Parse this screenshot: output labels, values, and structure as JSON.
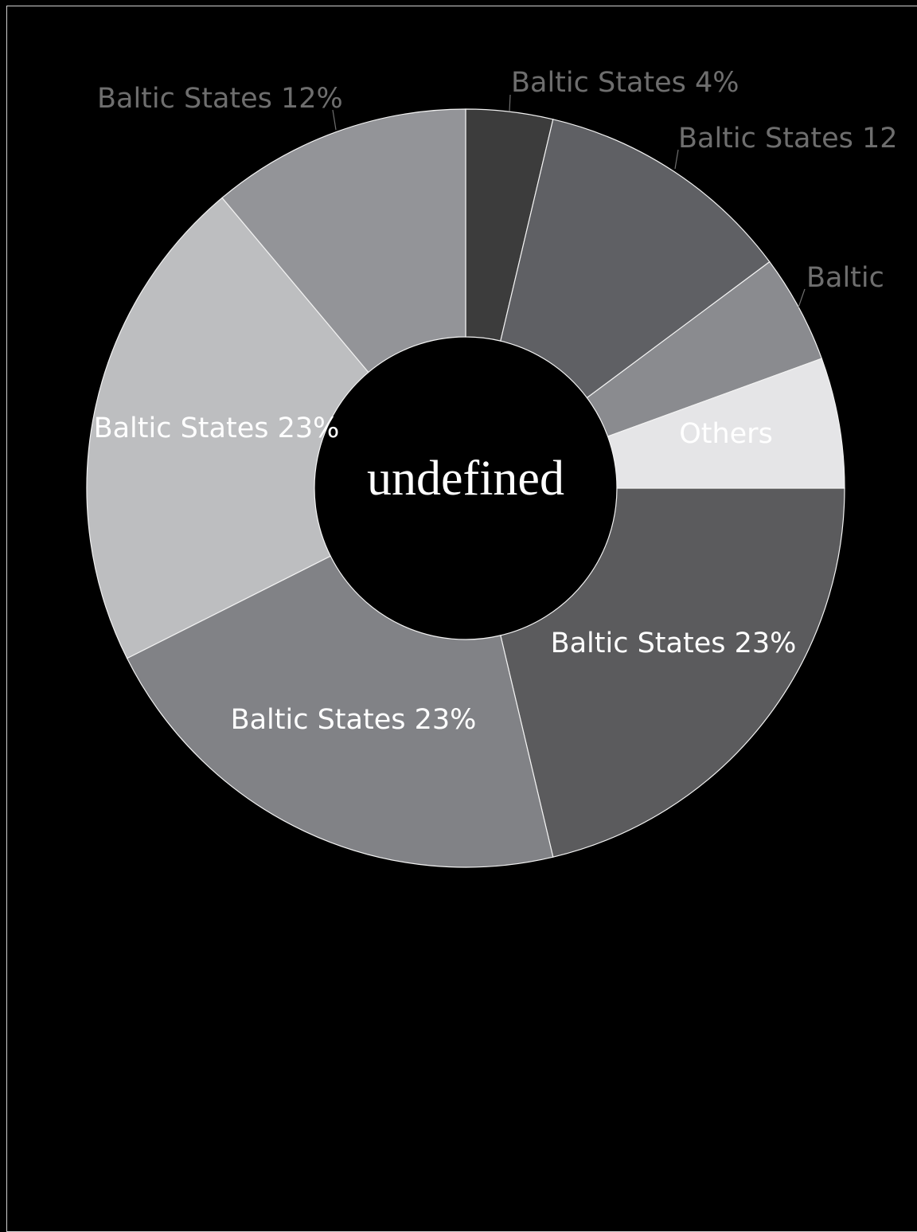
{
  "chart_data": {
    "type": "pie",
    "donut": true,
    "center_label": "undefined",
    "legend": false,
    "slices": [
      {
        "label": "Baltic States 4%",
        "value": 4,
        "color": "#3c3c3c",
        "label_position": "outside"
      },
      {
        "label": "Baltic States 12",
        "value": 12,
        "color": "#5f6064",
        "label_position": "outside"
      },
      {
        "label": "Baltic",
        "value": 5,
        "color": "#8a8b8f",
        "label_position": "outside"
      },
      {
        "label": "Others",
        "value": 6,
        "color": "#e5e5e7",
        "label_position": "inside"
      },
      {
        "label": "Baltic States 23%",
        "value": 23,
        "color": "#5b5b5d",
        "label_position": "inside"
      },
      {
        "label": "Baltic States 23%",
        "value": 23,
        "color": "#818286",
        "label_position": "inside"
      },
      {
        "label": "Baltic States 23%",
        "value": 23,
        "color": "#bdbec0",
        "label_position": "inside"
      },
      {
        "label": "Baltic States 12%",
        "value": 12,
        "color": "#939498",
        "label_position": "outside"
      }
    ]
  }
}
